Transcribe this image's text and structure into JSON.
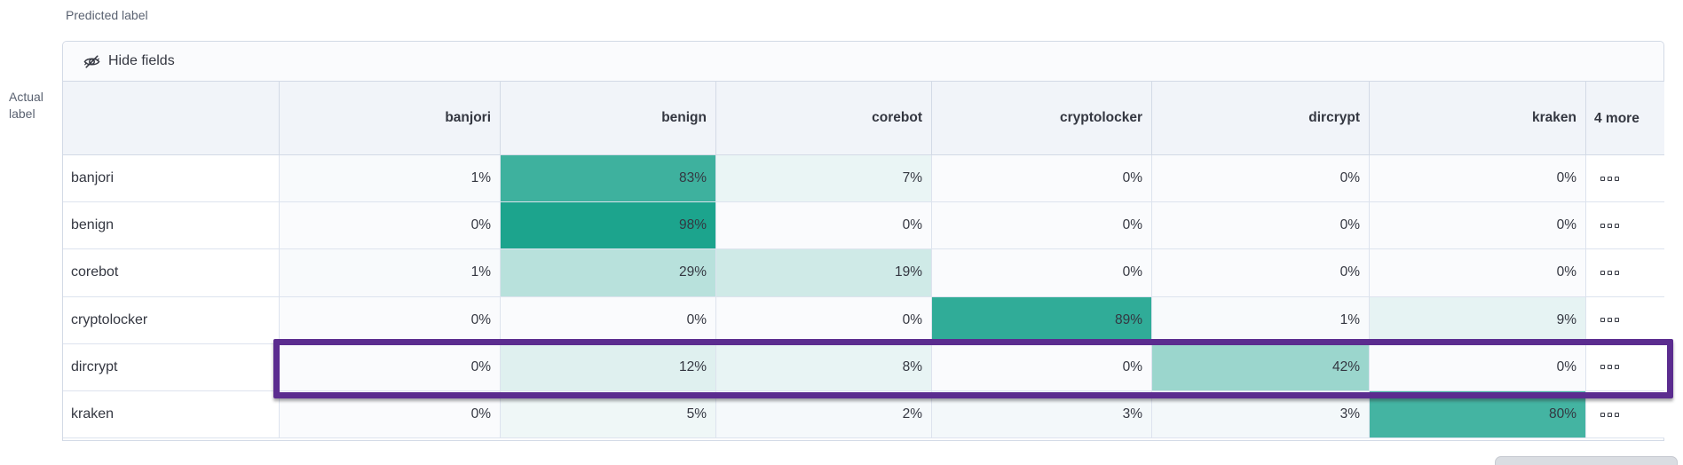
{
  "page": {
    "predicted_axis_label": "Predicted label",
    "actual_axis_label": "Actual label"
  },
  "toolbar": {
    "hide_fields_label": "Hide fields",
    "hide_fields_icon": "eye-closed-icon"
  },
  "matrix": {
    "columns": [
      "banjori",
      "benign",
      "corebot",
      "cryptolocker",
      "dircrypt",
      "kraken"
    ],
    "more_column_label": "4 more",
    "more_actions_icon": "boxes-horizontal-icon",
    "value_suffix": "%",
    "rows": [
      {
        "label": "banjori",
        "values": [
          1,
          83,
          7,
          0,
          0,
          0
        ],
        "highlighted": false
      },
      {
        "label": "benign",
        "values": [
          0,
          98,
          0,
          0,
          0,
          0
        ],
        "highlighted": false
      },
      {
        "label": "corebot",
        "values": [
          1,
          29,
          19,
          0,
          0,
          0
        ],
        "highlighted": false
      },
      {
        "label": "cryptolocker",
        "values": [
          0,
          0,
          0,
          89,
          1,
          9
        ],
        "highlighted": false
      },
      {
        "label": "dircrypt",
        "values": [
          0,
          12,
          8,
          0,
          42,
          0
        ],
        "highlighted": true
      },
      {
        "label": "kraken",
        "values": [
          0,
          5,
          2,
          3,
          3,
          80
        ],
        "highlighted": false
      }
    ]
  },
  "colors": {
    "heat_low": "#fafbfd",
    "heat_high": "#17a28b",
    "highlight_outline": "#5b2c8f",
    "border": "#d3dae6",
    "header_bg": "#f1f4f9",
    "toolbar_bg": "#fafbfd",
    "text": "#343741",
    "subdued_text": "#5a6271",
    "scroll_thumb": "#dadde2"
  },
  "chart_data": {
    "type": "heatmap",
    "xlabel": "Predicted label",
    "ylabel": "Actual label",
    "x_categories": [
      "banjori",
      "benign",
      "corebot",
      "cryptolocker",
      "dircrypt",
      "kraken"
    ],
    "x_overflow_note": "4 more",
    "y_categories": [
      "banjori",
      "benign",
      "corebot",
      "cryptolocker",
      "dircrypt",
      "kraken"
    ],
    "values_percent": [
      [
        1,
        83,
        7,
        0,
        0,
        0
      ],
      [
        0,
        98,
        0,
        0,
        0,
        0
      ],
      [
        1,
        29,
        19,
        0,
        0,
        0
      ],
      [
        0,
        0,
        0,
        89,
        1,
        9
      ],
      [
        0,
        12,
        8,
        0,
        42,
        0
      ],
      [
        0,
        5,
        2,
        3,
        3,
        80
      ]
    ],
    "highlighted_row": "dircrypt",
    "color_scale": {
      "low": "#fafbfd",
      "high": "#17a28b",
      "domain": [
        0,
        100
      ]
    }
  }
}
